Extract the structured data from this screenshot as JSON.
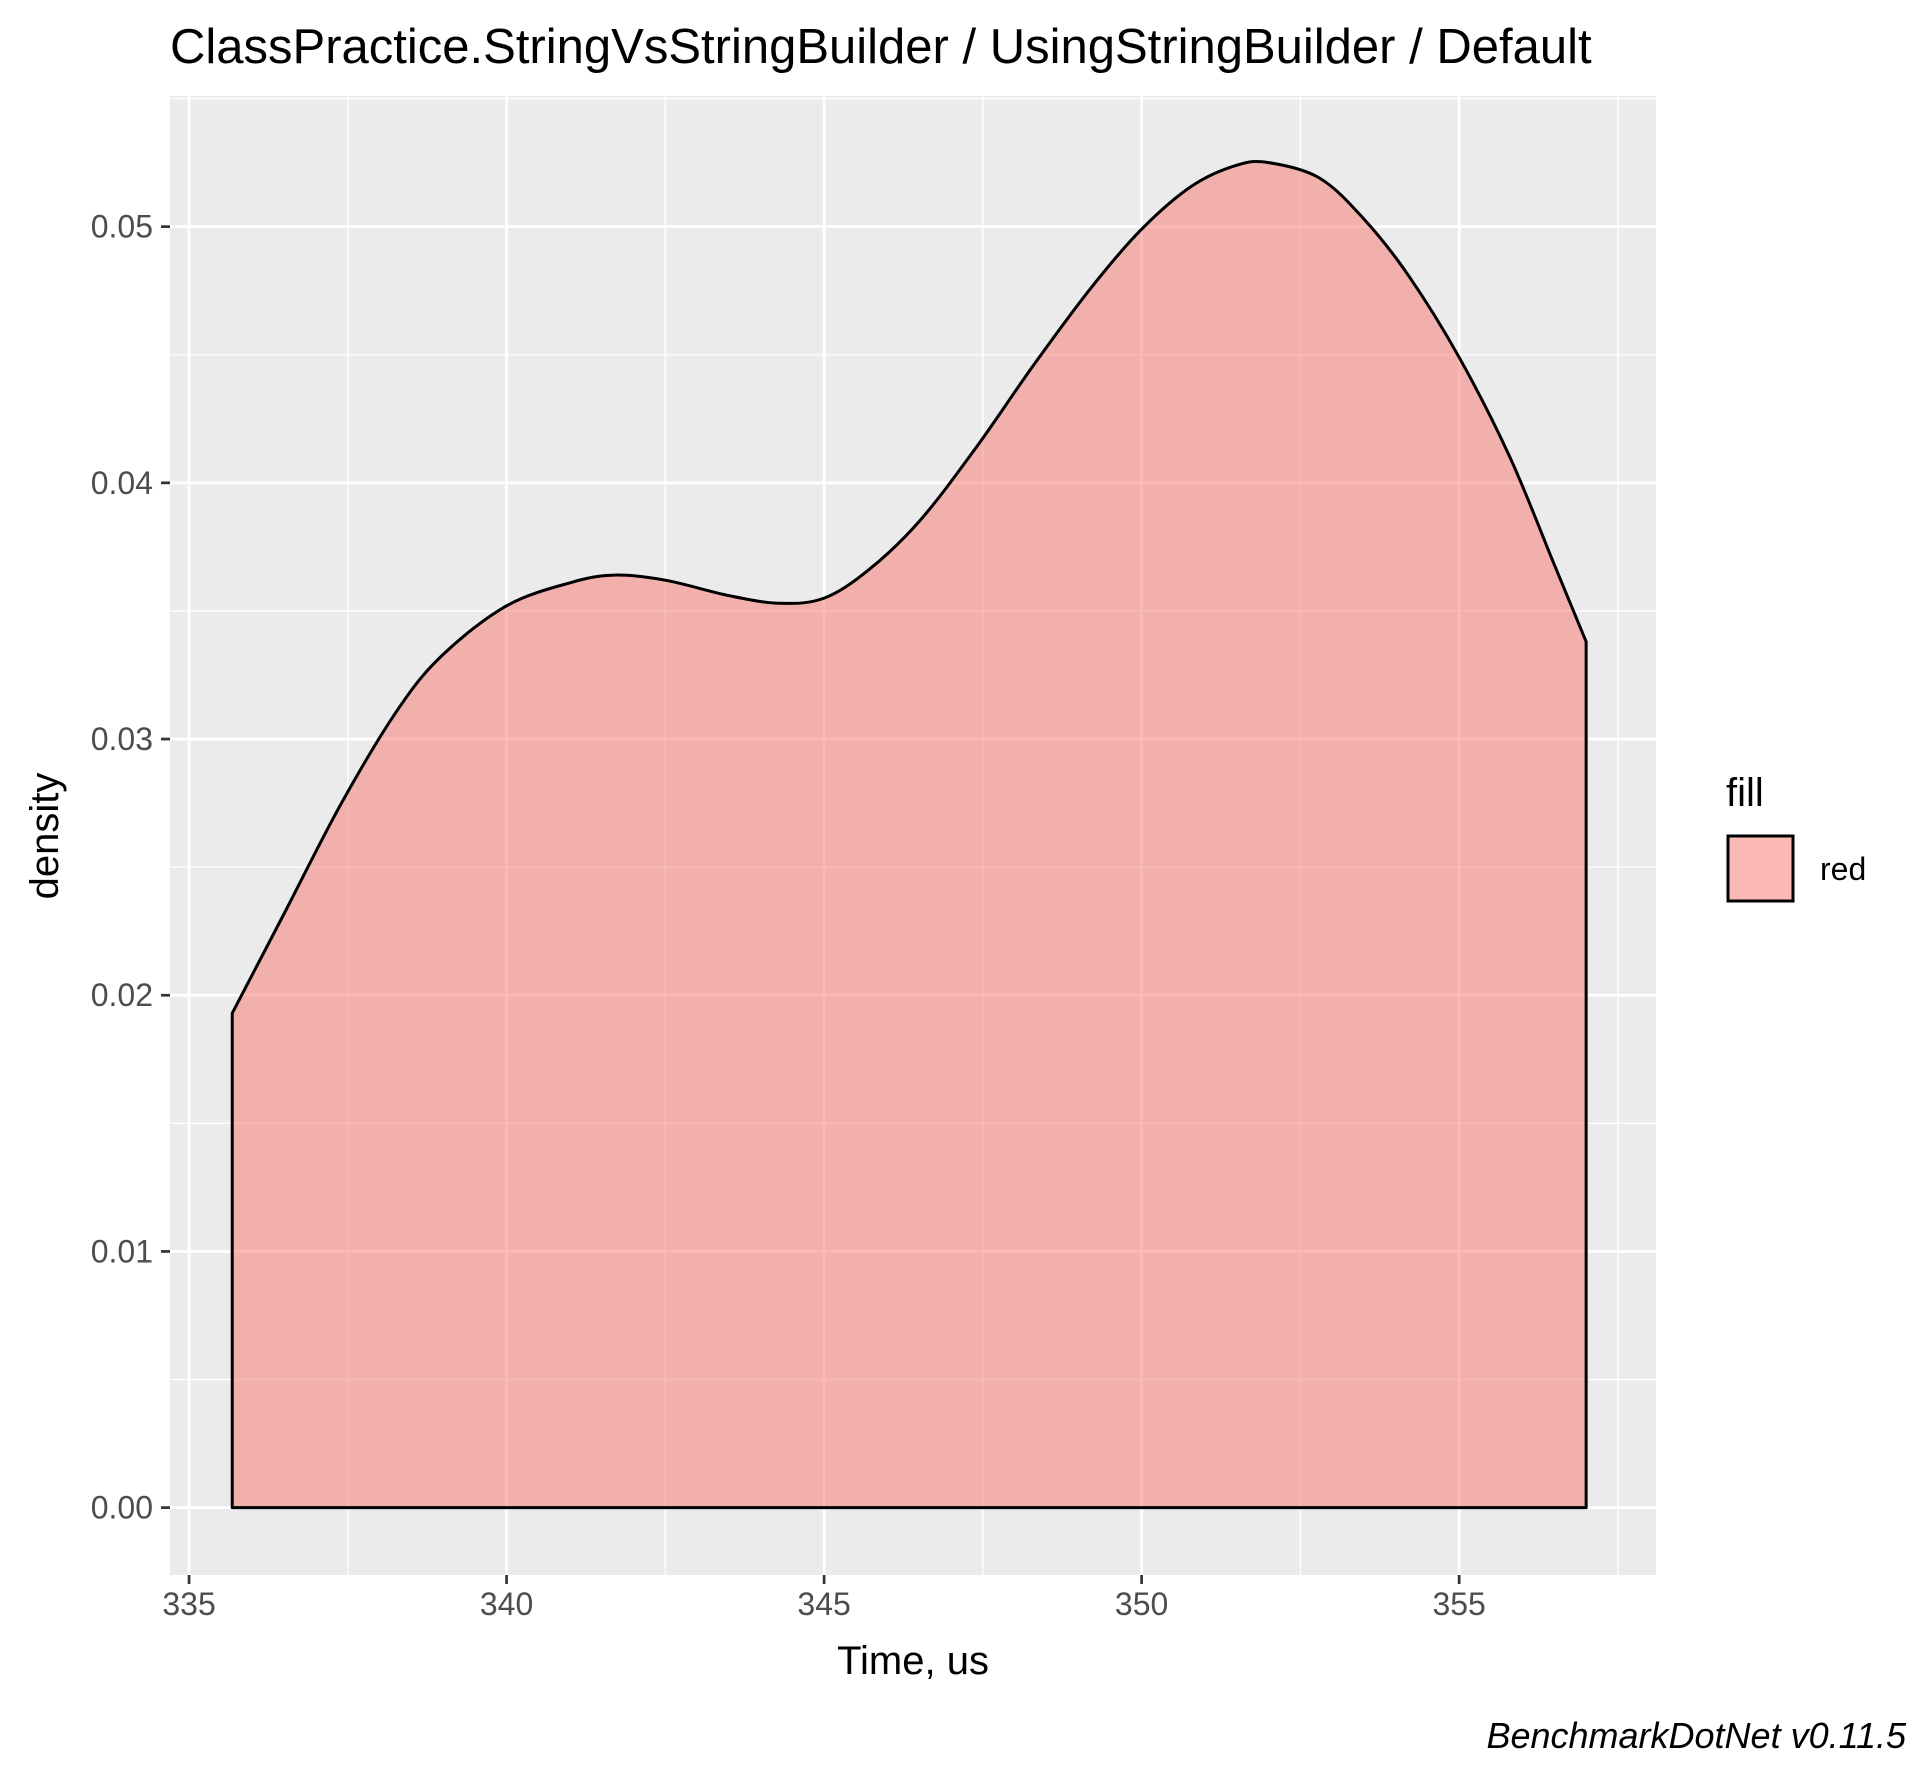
{
  "chart_data": {
    "type": "area",
    "title": "ClassPractice.StringVsStringBuilder / UsingStringBuilder / Default",
    "xlabel": "Time, us",
    "ylabel": "density",
    "xlim": [
      334.7,
      358.1
    ],
    "ylim": [
      -0.00263,
      0.0551
    ],
    "x_ticks": [
      335,
      340,
      345,
      350,
      355
    ],
    "x_tick_labels": [
      "335",
      "340",
      "345",
      "350",
      "355"
    ],
    "y_ticks": [
      0.0,
      0.01,
      0.02,
      0.03,
      0.04,
      0.05
    ],
    "y_tick_labels": [
      "0.00",
      "0.01",
      "0.02",
      "0.03",
      "0.04",
      "0.05"
    ],
    "grid": true,
    "legend": {
      "title": "fill",
      "position": "right",
      "entries": [
        {
          "label": "red",
          "color": "#F8766D"
        }
      ]
    },
    "series": [
      {
        "name": "red",
        "fill": "#F8766D",
        "fill_opacity": 0.5,
        "stroke": "#000000",
        "x": [
          335.68,
          336.5,
          337.4,
          338.3,
          339.0,
          340.0,
          341.0,
          341.7,
          342.5,
          343.5,
          344.3,
          345.0,
          345.7,
          346.5,
          347.4,
          348.3,
          349.2,
          350.0,
          350.8,
          351.5,
          352.0,
          352.8,
          353.5,
          354.2,
          355.0,
          355.8,
          356.5,
          357.0
        ],
        "values": [
          0.0193,
          0.0232,
          0.0275,
          0.0312,
          0.0333,
          0.0352,
          0.0361,
          0.0364,
          0.0362,
          0.0356,
          0.0353,
          0.0355,
          0.0366,
          0.0385,
          0.0414,
          0.0446,
          0.0476,
          0.0499,
          0.0516,
          0.0524,
          0.0525,
          0.0519,
          0.0503,
          0.0481,
          0.0449,
          0.041,
          0.0368,
          0.0338
        ]
      }
    ]
  },
  "caption": "BenchmarkDotNet v0.11.5",
  "colors": {
    "panel_background": "#EBEBEB",
    "grid_line": "#FFFFFF",
    "fill": "#F8766D"
  }
}
